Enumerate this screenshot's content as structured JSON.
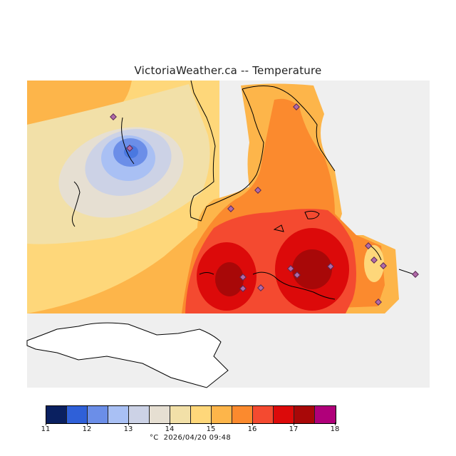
{
  "title": "VictoriaWeather.ca -- Temperature",
  "unit": "°C",
  "timestamp": "2026/04/20 09:48",
  "colors": {
    "land_grey": "#efefef",
    "coast": "#000000",
    "station_fill": "#b06aa8",
    "station_edge": "#5a2a55"
  },
  "legend": {
    "ticks": [
      "11",
      "12",
      "13",
      "14",
      "15",
      "16",
      "17",
      "18"
    ],
    "bins": [
      {
        "from": 11.0,
        "to": 11.5,
        "color": "#0a2060"
      },
      {
        "from": 11.5,
        "to": 12.0,
        "color": "#2f60d8"
      },
      {
        "from": 12.0,
        "to": 12.5,
        "color": "#6b8ee8"
      },
      {
        "from": 12.5,
        "to": 13.0,
        "color": "#a9c0f4"
      },
      {
        "from": 13.0,
        "to": 13.5,
        "color": "#ccd2e6"
      },
      {
        "from": 13.5,
        "to": 14.0,
        "color": "#e6dfd2"
      },
      {
        "from": 14.0,
        "to": 14.5,
        "color": "#f2e0a8"
      },
      {
        "from": 14.5,
        "to": 15.0,
        "color": "#fed77a"
      },
      {
        "from": 15.0,
        "to": 15.5,
        "color": "#fdb54a"
      },
      {
        "from": 15.5,
        "to": 16.0,
        "color": "#fb8a2e"
      },
      {
        "from": 16.0,
        "to": 16.5,
        "color": "#f44a30"
      },
      {
        "from": 16.5,
        "to": 17.0,
        "color": "#dc0a0a"
      },
      {
        "from": 17.0,
        "to": 17.5,
        "color": "#a80808"
      },
      {
        "from": 17.5,
        "to": 18.0,
        "color": "#b0007a"
      }
    ]
  }
}
